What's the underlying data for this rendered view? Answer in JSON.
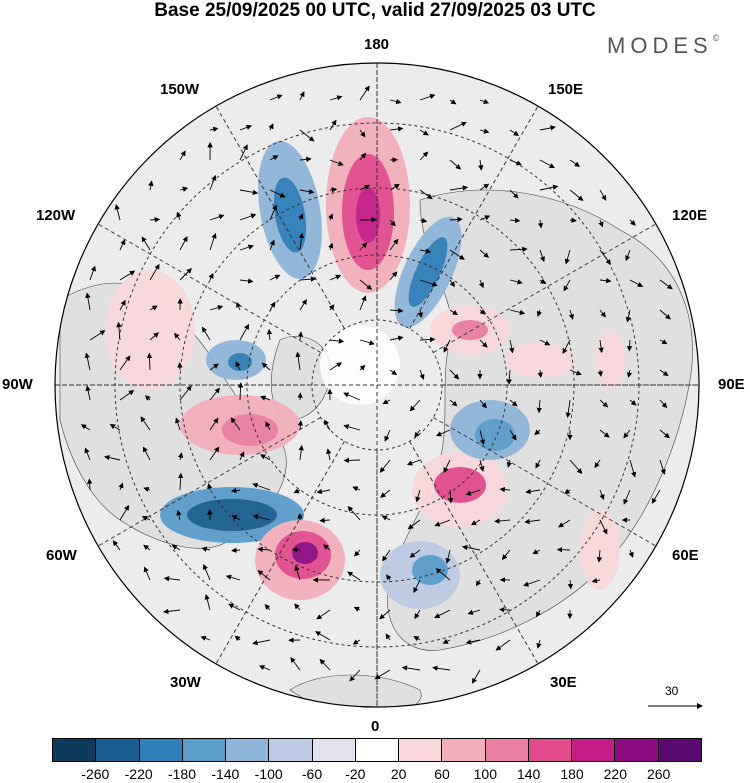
{
  "title": "Base 25/09/2025 00 UTC, valid 27/09/2025 03 UTC",
  "brand": "MODES",
  "brand_mark": "©",
  "longitude_labels": {
    "top": "180",
    "bottom": "0",
    "left": "90W",
    "right": "90E",
    "upper_left": "150W",
    "upper_right": "150E",
    "mid_upper_left": "120W",
    "mid_upper_right": "120E",
    "mid_lower_left": "60W",
    "mid_lower_right": "60E",
    "lower_left": "30W",
    "lower_right": "30E"
  },
  "reference_vector": {
    "label": "30"
  },
  "legend": {
    "ticks": [
      "-260",
      "-220",
      "-180",
      "-140",
      "-100",
      "-60",
      "-20",
      "20",
      "60",
      "100",
      "140",
      "180",
      "220",
      "260"
    ],
    "colors": [
      "#0e3a5c",
      "#1a5e8f",
      "#2f7fb8",
      "#5a9ccb",
      "#8fb5d9",
      "#bccbe3",
      "#e2e2ef",
      "#ffffff",
      "#f8d8dc",
      "#f2aebb",
      "#ea7fa1",
      "#e14b8e",
      "#c51d87",
      "#8e0c81",
      "#5a0a6e"
    ]
  },
  "colors": {
    "land": "#dcdcdc",
    "ocean": "#ffffff",
    "grid": "#333333"
  }
}
